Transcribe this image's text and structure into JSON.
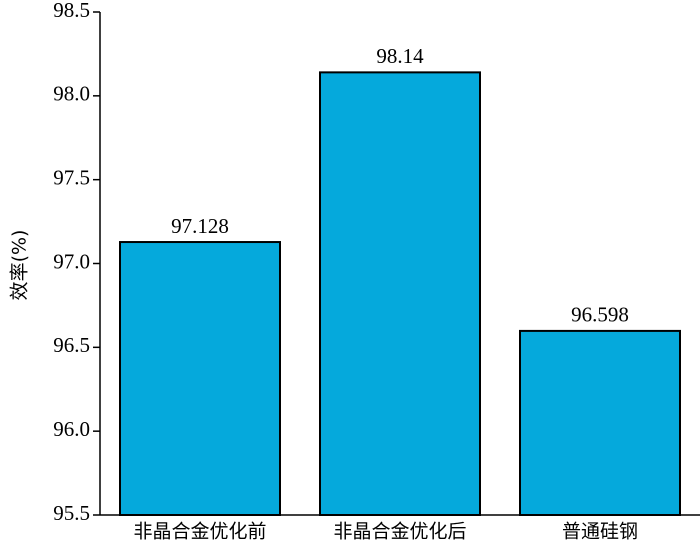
{
  "chart_data": {
    "type": "bar",
    "y_label": "效率(%)",
    "categories": [
      "非晶合金优化前",
      "非晶合金优化后",
      "普通硅钢"
    ],
    "values": [
      97.128,
      98.14,
      96.598
    ],
    "color": "#05a9dc",
    "ylim": [
      95.5,
      98.5
    ],
    "yticks": [
      95.5,
      {
        "value": 96,
        "label": "96.0"
      },
      96.5,
      {
        "value": 97,
        "label": "97.0"
      },
      97.5,
      {
        "value": 98,
        "label": "98.0"
      },
      98.5
    ],
    "grid": false
  }
}
